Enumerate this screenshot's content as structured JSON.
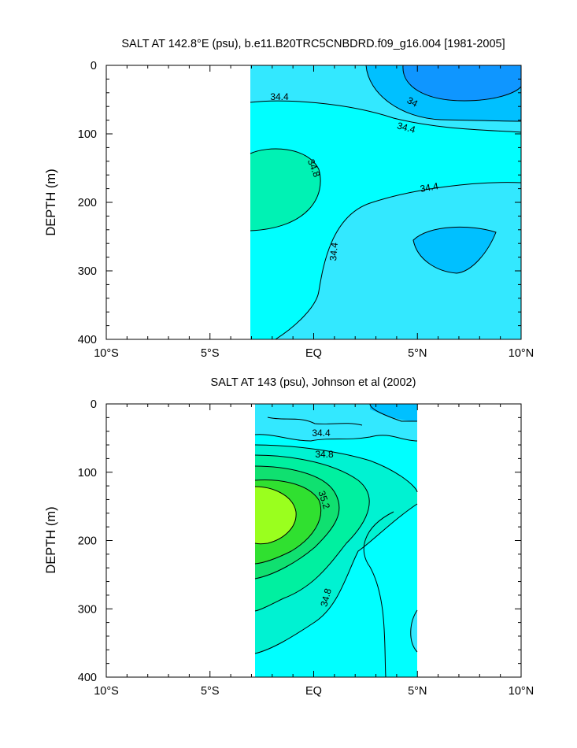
{
  "chart_data": [
    {
      "type": "heatmap",
      "title": "SALT AT 142.8°E (psu), b.e11.B20TRC5CNBDRD.f09_g16.004 [1981-2005]",
      "ylabel": "DEPTH (m)",
      "xlabel": "",
      "xlim": [
        -10,
        10
      ],
      "ylim": [
        400,
        0
      ],
      "x_ticks": [
        -10,
        -5,
        0,
        5,
        10
      ],
      "x_tick_labels": [
        "10°S",
        "5°S",
        "EQ",
        "5°N",
        "10°N"
      ],
      "y_ticks": [
        0,
        100,
        200,
        300,
        400
      ],
      "y_tick_labels": [
        "0",
        "100",
        "200",
        "300",
        "400"
      ],
      "data_extent_lat": [
        -3,
        10
      ],
      "contour_labels": [
        "34.4",
        "34",
        "34.4",
        "34.8",
        "34.4",
        "34.4"
      ],
      "fill_levels": [
        {
          "salinity": "< 34.0",
          "color": "#0f96ff"
        },
        {
          "salinity": "34.0–34.2",
          "color": "#00c0ff"
        },
        {
          "salinity": "34.2–34.4",
          "color": "#33e8ff"
        },
        {
          "salinity": "34.4–34.6",
          "color": "#00ffff"
        },
        {
          "salinity": "34.6–34.8",
          "color": "#00f2b4"
        }
      ]
    },
    {
      "type": "heatmap",
      "title": "SALT AT 143 (psu), Johnson et al (2002)",
      "ylabel": "DEPTH (m)",
      "xlabel": "",
      "xlim": [
        -10,
        10
      ],
      "ylim": [
        400,
        0
      ],
      "x_ticks": [
        -10,
        -5,
        0,
        5,
        10
      ],
      "x_tick_labels": [
        "10°S",
        "5°S",
        "EQ",
        "5°N",
        "10°N"
      ],
      "y_ticks": [
        0,
        100,
        200,
        300,
        400
      ],
      "y_tick_labels": [
        "0",
        "100",
        "200",
        "300",
        "400"
      ],
      "data_extent_lat": [
        -2.8,
        5
      ],
      "contour_labels": [
        "34.4",
        "34.8",
        "35.2",
        "34.8"
      ],
      "fill_levels": [
        {
          "salinity": "34.2–34.4",
          "color": "#33e8ff"
        },
        {
          "salinity": "34.4–34.6",
          "color": "#00ffff"
        },
        {
          "salinity": "34.6–34.8",
          "color": "#00f2d2"
        },
        {
          "salinity": "34.8–35.0",
          "color": "#00f0a0"
        },
        {
          "salinity": "35.0–35.2",
          "color": "#10e070"
        },
        {
          "salinity": "35.2–35.4",
          "color": "#30e030"
        },
        {
          "salinity": "> 35.4",
          "color": "#9aff1e"
        }
      ]
    }
  ]
}
